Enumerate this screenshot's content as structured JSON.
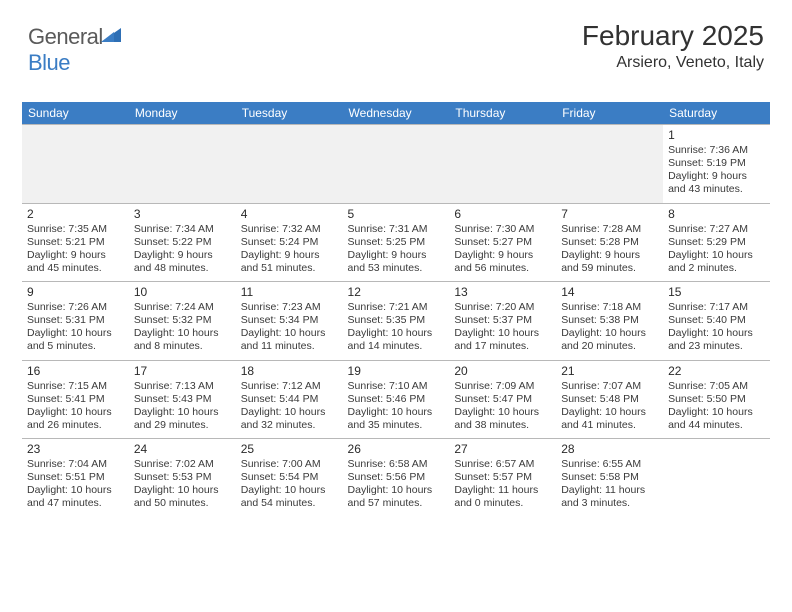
{
  "brand": {
    "part1": "General",
    "part2": "Blue"
  },
  "header": {
    "month": "February 2025",
    "location": "Arsiero, Veneto, Italy"
  },
  "colors": {
    "accent": "#3b7dc4",
    "header_row": "#3b7dc4",
    "text": "#3a3a3a",
    "blank_bg": "#f1f1f1",
    "divider": "#b8b8b8"
  },
  "weekdays": [
    "Sunday",
    "Monday",
    "Tuesday",
    "Wednesday",
    "Thursday",
    "Friday",
    "Saturday"
  ],
  "weeks": [
    [
      null,
      null,
      null,
      null,
      null,
      null,
      {
        "n": "1",
        "sr": "Sunrise: 7:36 AM",
        "ss": "Sunset: 5:19 PM",
        "d1": "Daylight: 9 hours",
        "d2": "and 43 minutes."
      }
    ],
    [
      {
        "n": "2",
        "sr": "Sunrise: 7:35 AM",
        "ss": "Sunset: 5:21 PM",
        "d1": "Daylight: 9 hours",
        "d2": "and 45 minutes."
      },
      {
        "n": "3",
        "sr": "Sunrise: 7:34 AM",
        "ss": "Sunset: 5:22 PM",
        "d1": "Daylight: 9 hours",
        "d2": "and 48 minutes."
      },
      {
        "n": "4",
        "sr": "Sunrise: 7:32 AM",
        "ss": "Sunset: 5:24 PM",
        "d1": "Daylight: 9 hours",
        "d2": "and 51 minutes."
      },
      {
        "n": "5",
        "sr": "Sunrise: 7:31 AM",
        "ss": "Sunset: 5:25 PM",
        "d1": "Daylight: 9 hours",
        "d2": "and 53 minutes."
      },
      {
        "n": "6",
        "sr": "Sunrise: 7:30 AM",
        "ss": "Sunset: 5:27 PM",
        "d1": "Daylight: 9 hours",
        "d2": "and 56 minutes."
      },
      {
        "n": "7",
        "sr": "Sunrise: 7:28 AM",
        "ss": "Sunset: 5:28 PM",
        "d1": "Daylight: 9 hours",
        "d2": "and 59 minutes."
      },
      {
        "n": "8",
        "sr": "Sunrise: 7:27 AM",
        "ss": "Sunset: 5:29 PM",
        "d1": "Daylight: 10 hours",
        "d2": "and 2 minutes."
      }
    ],
    [
      {
        "n": "9",
        "sr": "Sunrise: 7:26 AM",
        "ss": "Sunset: 5:31 PM",
        "d1": "Daylight: 10 hours",
        "d2": "and 5 minutes."
      },
      {
        "n": "10",
        "sr": "Sunrise: 7:24 AM",
        "ss": "Sunset: 5:32 PM",
        "d1": "Daylight: 10 hours",
        "d2": "and 8 minutes."
      },
      {
        "n": "11",
        "sr": "Sunrise: 7:23 AM",
        "ss": "Sunset: 5:34 PM",
        "d1": "Daylight: 10 hours",
        "d2": "and 11 minutes."
      },
      {
        "n": "12",
        "sr": "Sunrise: 7:21 AM",
        "ss": "Sunset: 5:35 PM",
        "d1": "Daylight: 10 hours",
        "d2": "and 14 minutes."
      },
      {
        "n": "13",
        "sr": "Sunrise: 7:20 AM",
        "ss": "Sunset: 5:37 PM",
        "d1": "Daylight: 10 hours",
        "d2": "and 17 minutes."
      },
      {
        "n": "14",
        "sr": "Sunrise: 7:18 AM",
        "ss": "Sunset: 5:38 PM",
        "d1": "Daylight: 10 hours",
        "d2": "and 20 minutes."
      },
      {
        "n": "15",
        "sr": "Sunrise: 7:17 AM",
        "ss": "Sunset: 5:40 PM",
        "d1": "Daylight: 10 hours",
        "d2": "and 23 minutes."
      }
    ],
    [
      {
        "n": "16",
        "sr": "Sunrise: 7:15 AM",
        "ss": "Sunset: 5:41 PM",
        "d1": "Daylight: 10 hours",
        "d2": "and 26 minutes."
      },
      {
        "n": "17",
        "sr": "Sunrise: 7:13 AM",
        "ss": "Sunset: 5:43 PM",
        "d1": "Daylight: 10 hours",
        "d2": "and 29 minutes."
      },
      {
        "n": "18",
        "sr": "Sunrise: 7:12 AM",
        "ss": "Sunset: 5:44 PM",
        "d1": "Daylight: 10 hours",
        "d2": "and 32 minutes."
      },
      {
        "n": "19",
        "sr": "Sunrise: 7:10 AM",
        "ss": "Sunset: 5:46 PM",
        "d1": "Daylight: 10 hours",
        "d2": "and 35 minutes."
      },
      {
        "n": "20",
        "sr": "Sunrise: 7:09 AM",
        "ss": "Sunset: 5:47 PM",
        "d1": "Daylight: 10 hours",
        "d2": "and 38 minutes."
      },
      {
        "n": "21",
        "sr": "Sunrise: 7:07 AM",
        "ss": "Sunset: 5:48 PM",
        "d1": "Daylight: 10 hours",
        "d2": "and 41 minutes."
      },
      {
        "n": "22",
        "sr": "Sunrise: 7:05 AM",
        "ss": "Sunset: 5:50 PM",
        "d1": "Daylight: 10 hours",
        "d2": "and 44 minutes."
      }
    ],
    [
      {
        "n": "23",
        "sr": "Sunrise: 7:04 AM",
        "ss": "Sunset: 5:51 PM",
        "d1": "Daylight: 10 hours",
        "d2": "and 47 minutes."
      },
      {
        "n": "24",
        "sr": "Sunrise: 7:02 AM",
        "ss": "Sunset: 5:53 PM",
        "d1": "Daylight: 10 hours",
        "d2": "and 50 minutes."
      },
      {
        "n": "25",
        "sr": "Sunrise: 7:00 AM",
        "ss": "Sunset: 5:54 PM",
        "d1": "Daylight: 10 hours",
        "d2": "and 54 minutes."
      },
      {
        "n": "26",
        "sr": "Sunrise: 6:58 AM",
        "ss": "Sunset: 5:56 PM",
        "d1": "Daylight: 10 hours",
        "d2": "and 57 minutes."
      },
      {
        "n": "27",
        "sr": "Sunrise: 6:57 AM",
        "ss": "Sunset: 5:57 PM",
        "d1": "Daylight: 11 hours",
        "d2": "and 0 minutes."
      },
      {
        "n": "28",
        "sr": "Sunrise: 6:55 AM",
        "ss": "Sunset: 5:58 PM",
        "d1": "Daylight: 11 hours",
        "d2": "and 3 minutes."
      },
      null
    ]
  ]
}
